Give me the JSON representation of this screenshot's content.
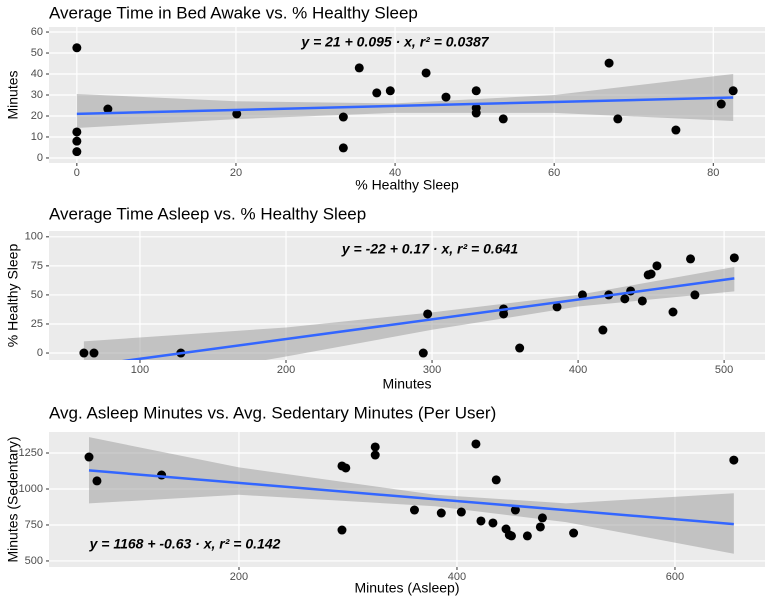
{
  "chart_data": [
    {
      "type": "scatter",
      "title": "Average Time in Bed Awake vs. % Healthy Sleep",
      "x_label": "% Healthy Sleep",
      "y_label": "Minutes",
      "xlim": [
        -3.5,
        86.5
      ],
      "ylim": [
        -2.4,
        62.4
      ],
      "xticks": [
        0,
        20,
        40,
        60,
        80
      ],
      "yticks": [
        0,
        10,
        20,
        30,
        40,
        50,
        60
      ],
      "grid": true,
      "series": [
        {
          "color": "#000000",
          "x": [
            0,
            0,
            0,
            0,
            3.9,
            20.1,
            33.5,
            33.5,
            35.5,
            37.7,
            39.4,
            43.9,
            46.4,
            50.2,
            50.2,
            50.2,
            53.6,
            66.9,
            68,
            75.3,
            81,
            82.5
          ],
          "values": [
            52.5,
            12.4,
            8,
            3,
            23.3,
            21,
            19.5,
            4.8,
            42.9,
            31,
            32,
            40.5,
            29,
            32,
            23.8,
            21.4,
            18.6,
            45.2,
            18.6,
            13.3,
            25.7,
            32
          ]
        }
      ],
      "fit": {
        "color": "#3366ff",
        "x": [
          0,
          82.5
        ],
        "values": [
          21,
          28.8
        ]
      },
      "band": {
        "color": "#999999",
        "x": [
          0,
          20,
          40,
          60,
          82.5
        ],
        "lower": [
          14.3,
          18.5,
          21.5,
          21.5,
          17.6
        ],
        "upper": [
          30.5,
          27,
          26,
          30,
          40
        ]
      },
      "annotation": "y = 21 + 0.095 · x,  r² = 0.0387"
    },
    {
      "type": "scatter",
      "title": "Average Time Asleep vs. % Healthy Sleep",
      "x_label": "Minutes",
      "y_label": "% Healthy Sleep",
      "xlim": [
        37.7,
        528
      ],
      "ylim": [
        -6,
        105
      ],
      "xticks": [
        100,
        200,
        300,
        400,
        500
      ],
      "yticks": [
        0,
        25,
        50,
        75,
        100
      ],
      "grid": true,
      "series": [
        {
          "color": "#000000",
          "x": [
            61.6,
            68.5,
            128,
            294,
            297,
            349,
            349,
            360,
            385.6,
            403,
            417,
            421,
            432,
            436,
            444,
            448,
            450,
            454,
            465,
            477,
            480,
            507
          ],
          "values": [
            0,
            0,
            0,
            0,
            33.6,
            33.6,
            37.9,
            4.3,
            39.7,
            50,
            19.8,
            50,
            46.6,
            53.4,
            44.8,
            67.2,
            68,
            75,
            35.3,
            81,
            50,
            81.9
          ]
        }
      ],
      "fit": {
        "color": "#3366ff",
        "x": [
          61.6,
          507
        ],
        "values": [
          -11.5,
          64.2
        ]
      },
      "band": {
        "color": "#999999",
        "x": [
          61.6,
          200,
          300,
          400,
          507
        ],
        "lower": [
          -33,
          -3,
          20,
          40,
          53
        ],
        "upper": [
          10,
          22,
          35,
          50,
          74
        ]
      },
      "annotation": "y = -22 + 0.17 · x,  r² = 0.641"
    },
    {
      "type": "scatter",
      "title": "Avg. Asleep Minutes vs. Avg. Sedentary Minutes (Per User)",
      "x_label": "Minutes (Asleep)",
      "y_label": "Minutes (Sedentary)",
      "xlim": [
        25.7,
        682.6
      ],
      "ylim": [
        458,
        1396
      ],
      "xticks": [
        200,
        400,
        600
      ],
      "yticks": [
        500,
        750,
        1000,
        1250
      ],
      "grid": true,
      "series": [
        {
          "color": "#000000",
          "x": [
            62.4,
            69.7,
            129,
            294.5,
            298,
            294.5,
            325,
            325,
            361,
            385.6,
            404,
            417.4,
            422,
            433,
            436,
            445,
            448,
            450,
            453.6,
            464.6,
            476.5,
            478.4,
            507,
            654
          ],
          "values": [
            1222,
            1056,
            1097,
            1160,
            1146,
            715,
            1292,
            1236,
            854,
            833,
            840,
            1313,
            778,
            764,
            1063,
            722,
            681,
            674,
            854,
            674,
            736,
            799,
            694,
            1201
          ]
        }
      ],
      "fit": {
        "color": "#3366ff",
        "x": [
          62.4,
          654
        ],
        "values": [
          1129,
          756
        ]
      },
      "band": {
        "color": "#999999",
        "x": [
          62.4,
          200,
          380,
          500,
          654
        ],
        "lower": [
          900,
          960,
          880,
          770,
          550
        ],
        "upper": [
          1360,
          1150,
          960,
          900,
          970
        ]
      },
      "annotation": "y = 1168 + -0.63 · x,  r² = 0.142"
    }
  ]
}
